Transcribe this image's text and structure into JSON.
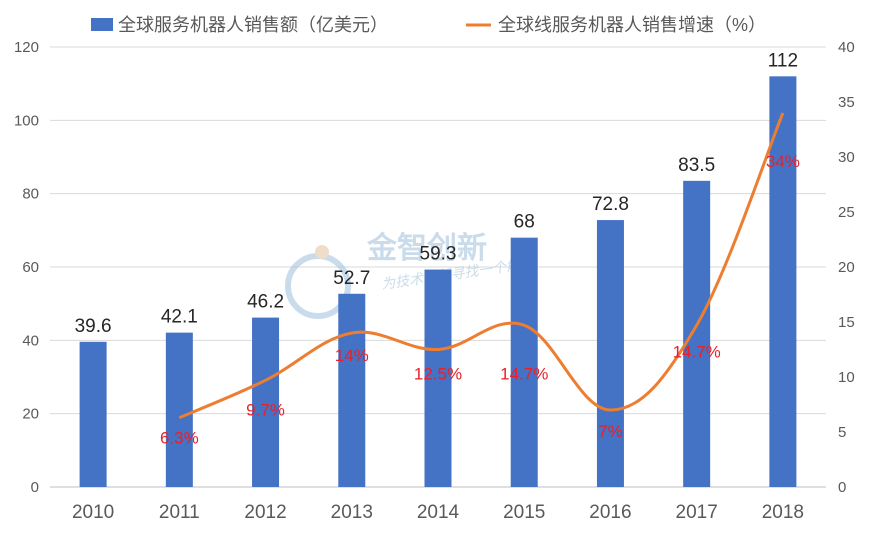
{
  "chart_data": {
    "type": "bar",
    "categories": [
      "2010",
      "2011",
      "2012",
      "2013",
      "2014",
      "2015",
      "2016",
      "2017",
      "2018"
    ],
    "series": [
      {
        "name": "全球服务机器人销售额（亿美元）",
        "type": "bar",
        "axis": "left",
        "values": [
          39.6,
          42.1,
          46.2,
          52.7,
          59.3,
          68,
          72.8,
          83.5,
          112
        ],
        "labels": [
          "39.6",
          "42.1",
          "46.2",
          "52.7",
          "59.3",
          "68",
          "72.8",
          "83.5",
          "112"
        ],
        "color": "#4472C4"
      },
      {
        "name": "全球线服务机器人销售增速（%）",
        "type": "line",
        "axis": "right",
        "x": [
          "2011",
          "2012",
          "2013",
          "2014",
          "2015",
          "2016",
          "2017",
          "2018"
        ],
        "values": [
          6.3,
          9.7,
          14,
          12.5,
          14.7,
          7,
          14.7,
          34
        ],
        "labels": [
          "6.3%",
          "9.7%",
          "14%",
          "12.5%",
          "14.7%",
          "7%",
          "14.7%",
          "34%"
        ],
        "color": "#ED7D31",
        "label_color": "#E8202A"
      }
    ],
    "left_axis": {
      "ylim": [
        0,
        120
      ],
      "ticks": [
        0,
        20,
        40,
        60,
        80,
        100,
        120
      ]
    },
    "right_axis": {
      "ylim": [
        0,
        40
      ],
      "ticks": [
        0,
        5,
        10,
        15,
        20,
        25,
        30,
        35,
        40
      ]
    },
    "legend": {
      "placement": "top"
    },
    "grid": true
  },
  "watermark": {
    "title": "金智创新",
    "subtitle": "为技术创新寻找一个解"
  }
}
